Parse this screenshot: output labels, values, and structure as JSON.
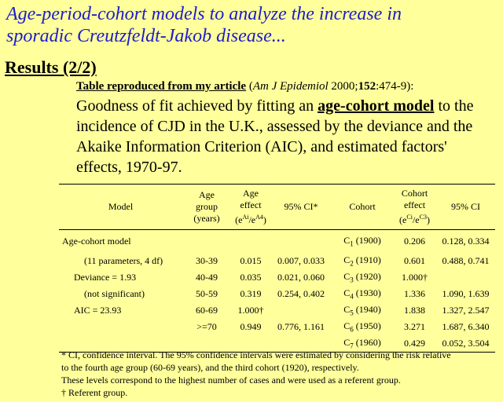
{
  "header": {
    "title_lines": [
      "Age-period-cohort models to analyze the increase in",
      "sporadic Creutzfeldt-Jakob disease..."
    ],
    "subtitle": "Results (2/2)"
  },
  "intro": {
    "lead": "Table reproduced from my article",
    "open": " (",
    "journal": "Am J Epidemiol",
    "year": " 2000;",
    "volume": "152",
    "pages": ":474-9):"
  },
  "description": {
    "before": "Goodness of fit achieved by fitting an ",
    "emphasis": "age-cohort model",
    "after": " to the incidence of CJD in the U.K., assessed by the deviance and the Akaike Information Criterion (AIC), and estimated factors' effects, 1970-97."
  },
  "table": {
    "headers": [
      [
        "Model"
      ],
      [
        "Age",
        "group",
        "(years)"
      ],
      [
        "Age",
        "effect",
        [
          {
            "text": "(e"
          },
          {
            "sup": "Ai"
          },
          {
            "text": "/e"
          },
          {
            "sup": "A4"
          },
          {
            "text": ")"
          }
        ]
      ],
      [
        "95% CI*"
      ],
      [
        "Cohort"
      ],
      [
        "Cohort",
        "effect",
        [
          {
            "text": "(e"
          },
          {
            "sup": "Ci"
          },
          {
            "text": "/e"
          },
          {
            "sup": "C3"
          },
          {
            "text": ")"
          }
        ]
      ],
      [
        "95% CI"
      ]
    ],
    "rows": [
      [
        "Age-cohort model",
        null,
        null,
        null,
        {
          "letter": "C",
          "sub": "1",
          "year": " (1900)"
        },
        "0.206",
        "0.128, 0.334"
      ],
      [
        "(11 parameters, 4 df)",
        "30-39",
        "0.015",
        "0.007, 0.033",
        {
          "letter": "C",
          "sub": "2",
          "year": " (1910)"
        },
        "0.601",
        "0.488, 0.741"
      ],
      [
        "Deviance = 1.93",
        "40-49",
        "0.035",
        "0.021, 0.060",
        {
          "letter": "C",
          "sub": "3",
          "year": " (1920)"
        },
        "1.000†",
        null
      ],
      [
        "(not significant)",
        "50-59",
        "0.319",
        "0.254, 0.402",
        {
          "letter": "C",
          "sub": "4",
          "year": " (1930)"
        },
        "1.336",
        "1.090, 1.639"
      ],
      [
        "AIC = 23.93",
        "60-69",
        "1.000†",
        null,
        {
          "letter": "C",
          "sub": "5",
          "year": " (1940)"
        },
        "1.838",
        "1.327, 2.547"
      ],
      [
        null,
        ">=70",
        "0.949",
        "0.776, 1.161",
        {
          "letter": "C",
          "sub": "6",
          "year": " (1950)"
        },
        "3.271",
        "1.687, 6.340"
      ],
      [
        null,
        null,
        null,
        null,
        {
          "letter": "C",
          "sub": "7",
          "year": " (1960)"
        },
        "0.429",
        "0.052, 3.504"
      ]
    ]
  },
  "footnotes": [
    "* CI, confidence interval. The 95% confidence intervals were estimated by considering the risk relative",
    "to the fourth age group (60-69 years), and the third cohort (1920), respectively.",
    "These levels correspond to the highest number of cases and were used as a referent group.",
    "† Referent group."
  ]
}
